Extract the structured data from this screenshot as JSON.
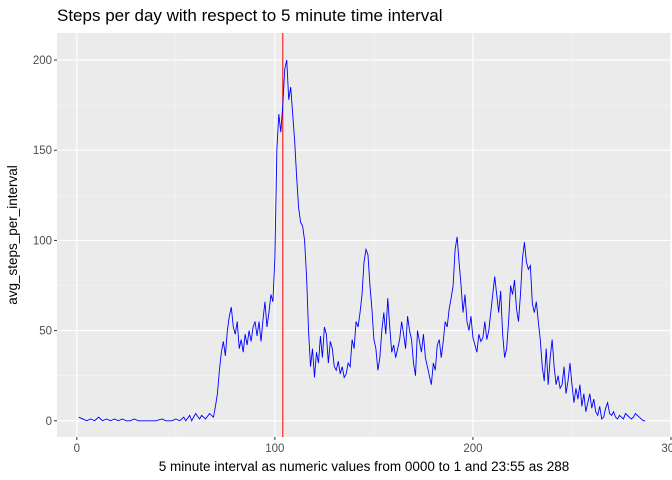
{
  "chart_data": {
    "type": "line",
    "title": "Steps per day with respect to 5 minute time interval",
    "xlabel": "5 minute interval as numeric values from 0000 to 1 and  23:55 as 288",
    "ylabel": "avg_steps_per_interval",
    "xlim": [
      -10,
      300
    ],
    "ylim": [
      -9,
      215
    ],
    "x_ticks": [
      0,
      100,
      200,
      300
    ],
    "y_ticks": [
      0,
      50,
      100,
      150,
      200
    ],
    "grid": true,
    "panel_background": "#ebebeb",
    "series": [
      {
        "color": "#0000ff",
        "points": [
          [
            1,
            2
          ],
          [
            3,
            1
          ],
          [
            5,
            0
          ],
          [
            7,
            1
          ],
          [
            9,
            0
          ],
          [
            11,
            2
          ],
          [
            13,
            0
          ],
          [
            15,
            1
          ],
          [
            17,
            0
          ],
          [
            19,
            1
          ],
          [
            21,
            0
          ],
          [
            23,
            1
          ],
          [
            25,
            0
          ],
          [
            27,
            0
          ],
          [
            29,
            1
          ],
          [
            31,
            0
          ],
          [
            35,
            0
          ],
          [
            40,
            0
          ],
          [
            43,
            1
          ],
          [
            45,
            0
          ],
          [
            48,
            0
          ],
          [
            50,
            1
          ],
          [
            52,
            0
          ],
          [
            54,
            2
          ],
          [
            55,
            0
          ],
          [
            57,
            3
          ],
          [
            58,
            0
          ],
          [
            60,
            4
          ],
          [
            62,
            1
          ],
          [
            63,
            3
          ],
          [
            65,
            1
          ],
          [
            67,
            4
          ],
          [
            69,
            2
          ],
          [
            70,
            8
          ],
          [
            71,
            15
          ],
          [
            72,
            28
          ],
          [
            73,
            38
          ],
          [
            74,
            44
          ],
          [
            75,
            36
          ],
          [
            76,
            50
          ],
          [
            77,
            58
          ],
          [
            78,
            63
          ],
          [
            79,
            52
          ],
          [
            80,
            48
          ],
          [
            81,
            55
          ],
          [
            82,
            40
          ],
          [
            83,
            45
          ],
          [
            84,
            38
          ],
          [
            85,
            48
          ],
          [
            86,
            42
          ],
          [
            87,
            50
          ],
          [
            88,
            44
          ],
          [
            89,
            52
          ],
          [
            90,
            55
          ],
          [
            91,
            47
          ],
          [
            92,
            55
          ],
          [
            93,
            44
          ],
          [
            94,
            56
          ],
          [
            95,
            66
          ],
          [
            96,
            52
          ],
          [
            97,
            60
          ],
          [
            98,
            70
          ],
          [
            99,
            66
          ],
          [
            100,
            90
          ],
          [
            101,
            150
          ],
          [
            102,
            170
          ],
          [
            103,
            160
          ],
          [
            104,
            175
          ],
          [
            105,
            195
          ],
          [
            106,
            200
          ],
          [
            107,
            178
          ],
          [
            108,
            185
          ],
          [
            109,
            170
          ],
          [
            110,
            155
          ],
          [
            111,
            135
          ],
          [
            112,
            118
          ],
          [
            113,
            110
          ],
          [
            114,
            108
          ],
          [
            115,
            100
          ],
          [
            116,
            80
          ],
          [
            117,
            50
          ],
          [
            118,
            30
          ],
          [
            119,
            40
          ],
          [
            120,
            24
          ],
          [
            121,
            38
          ],
          [
            122,
            32
          ],
          [
            123,
            47
          ],
          [
            124,
            35
          ],
          [
            125,
            52
          ],
          [
            126,
            48
          ],
          [
            127,
            32
          ],
          [
            128,
            44
          ],
          [
            129,
            40
          ],
          [
            130,
            30
          ],
          [
            131,
            28
          ],
          [
            132,
            33
          ],
          [
            133,
            26
          ],
          [
            134,
            30
          ],
          [
            135,
            24
          ],
          [
            136,
            26
          ],
          [
            137,
            32
          ],
          [
            138,
            30
          ],
          [
            139,
            45
          ],
          [
            140,
            40
          ],
          [
            141,
            55
          ],
          [
            142,
            52
          ],
          [
            143,
            60
          ],
          [
            144,
            70
          ],
          [
            145,
            88
          ],
          [
            146,
            95
          ],
          [
            147,
            92
          ],
          [
            148,
            75
          ],
          [
            149,
            62
          ],
          [
            150,
            45
          ],
          [
            151,
            40
          ],
          [
            152,
            28
          ],
          [
            153,
            35
          ],
          [
            154,
            50
          ],
          [
            155,
            60
          ],
          [
            156,
            48
          ],
          [
            157,
            68
          ],
          [
            158,
            52
          ],
          [
            159,
            38
          ],
          [
            160,
            42
          ],
          [
            161,
            35
          ],
          [
            162,
            40
          ],
          [
            163,
            45
          ],
          [
            164,
            55
          ],
          [
            165,
            48
          ],
          [
            166,
            40
          ],
          [
            167,
            58
          ],
          [
            168,
            50
          ],
          [
            169,
            45
          ],
          [
            170,
            32
          ],
          [
            171,
            25
          ],
          [
            172,
            50
          ],
          [
            173,
            44
          ],
          [
            174,
            38
          ],
          [
            175,
            48
          ],
          [
            176,
            35
          ],
          [
            177,
            30
          ],
          [
            178,
            25
          ],
          [
            179,
            20
          ],
          [
            180,
            32
          ],
          [
            181,
            28
          ],
          [
            182,
            42
          ],
          [
            183,
            45
          ],
          [
            184,
            35
          ],
          [
            185,
            44
          ],
          [
            186,
            55
          ],
          [
            187,
            52
          ],
          [
            188,
            62
          ],
          [
            189,
            68
          ],
          [
            190,
            75
          ],
          [
            191,
            95
          ],
          [
            192,
            102
          ],
          [
            193,
            88
          ],
          [
            194,
            75
          ],
          [
            195,
            60
          ],
          [
            196,
            70
          ],
          [
            197,
            55
          ],
          [
            198,
            50
          ],
          [
            199,
            58
          ],
          [
            200,
            46
          ],
          [
            201,
            42
          ],
          [
            202,
            38
          ],
          [
            203,
            48
          ],
          [
            204,
            44
          ],
          [
            205,
            46
          ],
          [
            206,
            55
          ],
          [
            207,
            45
          ],
          [
            208,
            50
          ],
          [
            209,
            60
          ],
          [
            210,
            70
          ],
          [
            211,
            80
          ],
          [
            212,
            70
          ],
          [
            213,
            60
          ],
          [
            214,
            72
          ],
          [
            215,
            48
          ],
          [
            216,
            35
          ],
          [
            217,
            40
          ],
          [
            218,
            55
          ],
          [
            219,
            75
          ],
          [
            220,
            70
          ],
          [
            221,
            78
          ],
          [
            222,
            62
          ],
          [
            223,
            55
          ],
          [
            224,
            70
          ],
          [
            225,
            90
          ],
          [
            226,
            99
          ],
          [
            227,
            88
          ],
          [
            228,
            84
          ],
          [
            229,
            86
          ],
          [
            230,
            65
          ],
          [
            231,
            60
          ],
          [
            232,
            66
          ],
          [
            233,
            55
          ],
          [
            234,
            45
          ],
          [
            235,
            30
          ],
          [
            236,
            22
          ],
          [
            237,
            40
          ],
          [
            238,
            20
          ],
          [
            239,
            35
          ],
          [
            240,
            45
          ],
          [
            241,
            30
          ],
          [
            242,
            20
          ],
          [
            243,
            25
          ],
          [
            244,
            18
          ],
          [
            245,
            20
          ],
          [
            246,
            30
          ],
          [
            247,
            15
          ],
          [
            248,
            22
          ],
          [
            249,
            32
          ],
          [
            250,
            20
          ],
          [
            251,
            10
          ],
          [
            252,
            18
          ],
          [
            253,
            12
          ],
          [
            254,
            20
          ],
          [
            255,
            8
          ],
          [
            256,
            15
          ],
          [
            257,
            5
          ],
          [
            258,
            10
          ],
          [
            259,
            15
          ],
          [
            260,
            7
          ],
          [
            261,
            12
          ],
          [
            262,
            5
          ],
          [
            263,
            3
          ],
          [
            264,
            8
          ],
          [
            265,
            1
          ],
          [
            266,
            2
          ],
          [
            267,
            7
          ],
          [
            268,
            10
          ],
          [
            269,
            4
          ],
          [
            270,
            3
          ],
          [
            271,
            5
          ],
          [
            272,
            2
          ],
          [
            273,
            1
          ],
          [
            274,
            3
          ],
          [
            275,
            2
          ],
          [
            276,
            1
          ],
          [
            277,
            4
          ],
          [
            278,
            3
          ],
          [
            279,
            2
          ],
          [
            280,
            1
          ],
          [
            281,
            2
          ],
          [
            282,
            4
          ],
          [
            283,
            3
          ],
          [
            284,
            2
          ],
          [
            285,
            1
          ],
          [
            286,
            0
          ],
          [
            287,
            0
          ]
        ]
      }
    ],
    "reference_line": {
      "x": 104,
      "color": "#ff0000"
    }
  }
}
